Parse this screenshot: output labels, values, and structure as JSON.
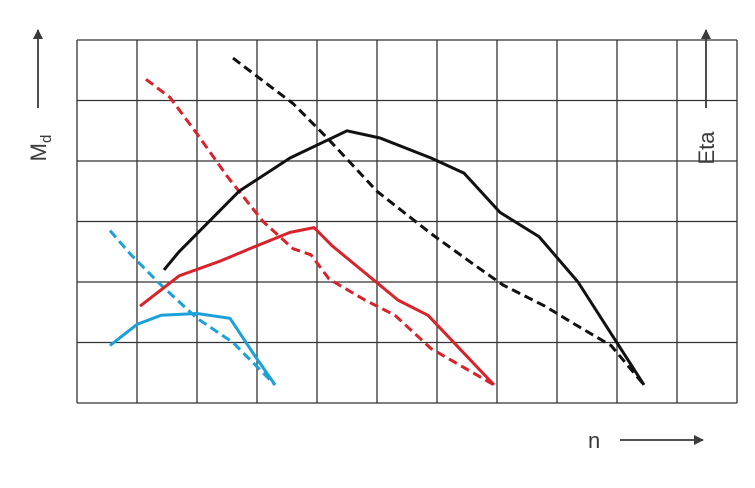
{
  "chart_data": {
    "type": "line",
    "title": "",
    "xlabel": "n",
    "ylabel_left": "Md",
    "ylabel_left_main": "M",
    "ylabel_left_sub": "d",
    "ylabel_right": "Eta",
    "axis_ticks_labeled": false,
    "grid": true,
    "grid_columns": 11,
    "grid_rows": 6,
    "xlim": [
      0,
      11
    ],
    "ylim": [
      0,
      6
    ],
    "colors": {
      "grid": "#333333",
      "axis_text": "#3a3a3a"
    },
    "series": [
      {
        "color": "#1ba1d8",
        "style": "solid",
        "x": [
          0.55,
          1.0,
          1.4,
          2.0,
          2.55,
          2.95,
          3.3
        ],
        "y": [
          0.95,
          1.3,
          1.45,
          1.48,
          1.4,
          0.8,
          0.3
        ]
      },
      {
        "color": "#1ba1d8",
        "style": "dashed",
        "x": [
          0.55,
          0.9,
          1.4,
          2.0,
          2.6,
          3.3
        ],
        "y": [
          2.85,
          2.45,
          1.95,
          1.4,
          1.0,
          0.3
        ]
      },
      {
        "color": "#d8232a",
        "style": "solid",
        "x": [
          1.05,
          1.7,
          2.4,
          3.0,
          3.55,
          3.95,
          4.25,
          4.8,
          5.35,
          5.85,
          6.95
        ],
        "y": [
          1.6,
          2.1,
          2.35,
          2.6,
          2.82,
          2.9,
          2.6,
          2.15,
          1.7,
          1.45,
          0.3
        ]
      },
      {
        "color": "#d8232a",
        "style": "dashed",
        "x": [
          1.15,
          1.55,
          2.0,
          2.5,
          3.1,
          3.6,
          3.9,
          4.2,
          4.8,
          5.3,
          5.9,
          6.95
        ],
        "y": [
          5.35,
          5.05,
          4.45,
          3.75,
          3.0,
          2.55,
          2.45,
          2.05,
          1.7,
          1.45,
          0.9,
          0.3
        ]
      },
      {
        "color": "#111111",
        "style": "solid",
        "x": [
          1.45,
          1.7,
          2.7,
          3.55,
          4.5,
          5.05,
          5.9,
          6.45,
          7.05,
          7.7,
          8.35,
          9.45
        ],
        "y": [
          2.2,
          2.5,
          3.5,
          4.05,
          4.5,
          4.38,
          4.05,
          3.8,
          3.15,
          2.75,
          2.0,
          0.3
        ]
      },
      {
        "color": "#111111",
        "style": "dashed",
        "x": [
          2.6,
          3.2,
          3.6,
          4.2,
          5.0,
          5.9,
          6.6,
          7.1,
          7.8,
          8.3,
          8.9,
          9.45
        ],
        "y": [
          5.7,
          5.25,
          4.95,
          4.35,
          3.5,
          2.8,
          2.3,
          1.95,
          1.6,
          1.3,
          0.95,
          0.3
        ]
      }
    ]
  }
}
